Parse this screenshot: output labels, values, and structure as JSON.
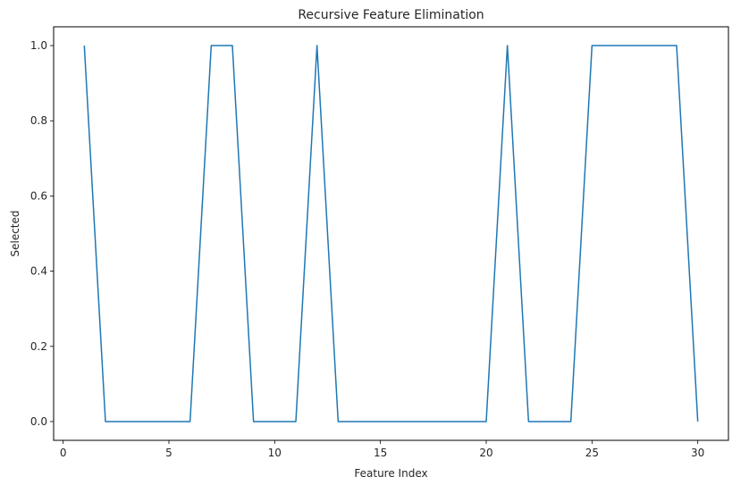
{
  "chart_data": {
    "type": "line",
    "title": "Recursive Feature Elimination",
    "xlabel": "Feature Index",
    "ylabel": "Selected",
    "xlim": [
      -0.45,
      31.45
    ],
    "ylim": [
      -0.05,
      1.05
    ],
    "xticks": [
      0,
      5,
      10,
      15,
      20,
      25,
      30
    ],
    "xtick_labels": [
      "0",
      "5",
      "10",
      "15",
      "20",
      "25",
      "30"
    ],
    "yticks": [
      0.0,
      0.2,
      0.4,
      0.6,
      0.8,
      1.0
    ],
    "ytick_labels": [
      "0.0",
      "0.2",
      "0.4",
      "0.6",
      "0.8",
      "1.0"
    ],
    "grid": false,
    "series": [
      {
        "color": "#1f77b4",
        "x": [
          1,
          2,
          3,
          4,
          5,
          6,
          7,
          8,
          9,
          10,
          11,
          12,
          13,
          14,
          15,
          16,
          17,
          18,
          19,
          20,
          21,
          22,
          23,
          24,
          25,
          26,
          27,
          28,
          29,
          30
        ],
        "y": [
          1,
          0,
          0,
          0,
          0,
          0,
          1,
          1,
          0,
          0,
          0,
          1,
          0,
          0,
          0,
          0,
          0,
          0,
          0,
          0,
          1,
          0,
          0,
          0,
          1,
          1,
          1,
          1,
          1,
          0
        ]
      }
    ]
  }
}
